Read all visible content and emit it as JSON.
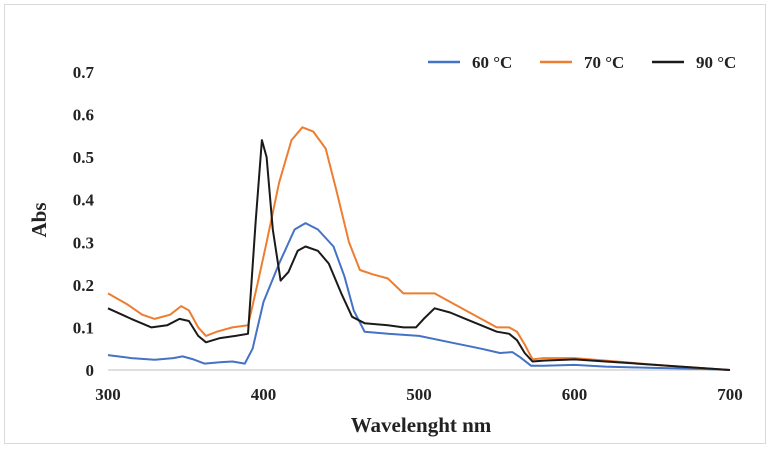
{
  "chart_data": {
    "type": "line",
    "xlabel": "Wavelenght nm",
    "ylabel": "Abs",
    "xlim": [
      300,
      700
    ],
    "ylim": [
      0,
      0.7
    ],
    "x_ticks": [
      "300",
      "400",
      "500",
      "600",
      "700"
    ],
    "y_ticks": [
      "0",
      "0.1",
      "0.2",
      "0.3",
      "0.4",
      "0.5",
      "0.6",
      "0.7"
    ],
    "grid": false,
    "legend": "top-right",
    "series": [
      {
        "name": "60 °C",
        "color": "#4472c4",
        "points": [
          [
            300,
            0.035
          ],
          [
            315,
            0.028
          ],
          [
            330,
            0.024
          ],
          [
            342,
            0.028
          ],
          [
            348,
            0.032
          ],
          [
            355,
            0.025
          ],
          [
            362,
            0.015
          ],
          [
            372,
            0.018
          ],
          [
            380,
            0.02
          ],
          [
            388,
            0.015
          ],
          [
            393,
            0.05
          ],
          [
            400,
            0.16
          ],
          [
            410,
            0.25
          ],
          [
            420,
            0.33
          ],
          [
            427,
            0.345
          ],
          [
            435,
            0.33
          ],
          [
            445,
            0.29
          ],
          [
            452,
            0.22
          ],
          [
            458,
            0.14
          ],
          [
            465,
            0.09
          ],
          [
            480,
            0.085
          ],
          [
            500,
            0.08
          ],
          [
            520,
            0.065
          ],
          [
            540,
            0.05
          ],
          [
            552,
            0.04
          ],
          [
            560,
            0.042
          ],
          [
            565,
            0.03
          ],
          [
            572,
            0.01
          ],
          [
            580,
            0.01
          ],
          [
            600,
            0.012
          ],
          [
            620,
            0.008
          ],
          [
            650,
            0.005
          ],
          [
            680,
            0.003
          ],
          [
            700,
            0.0
          ]
        ]
      },
      {
        "name": "70 °C",
        "color": "#ed7d31",
        "points": [
          [
            300,
            0.18
          ],
          [
            312,
            0.155
          ],
          [
            322,
            0.13
          ],
          [
            330,
            0.12
          ],
          [
            340,
            0.13
          ],
          [
            347,
            0.15
          ],
          [
            352,
            0.14
          ],
          [
            358,
            0.1
          ],
          [
            363,
            0.08
          ],
          [
            370,
            0.09
          ],
          [
            380,
            0.1
          ],
          [
            390,
            0.105
          ],
          [
            396,
            0.2
          ],
          [
            402,
            0.3
          ],
          [
            410,
            0.44
          ],
          [
            418,
            0.54
          ],
          [
            425,
            0.57
          ],
          [
            432,
            0.56
          ],
          [
            440,
            0.52
          ],
          [
            447,
            0.42
          ],
          [
            455,
            0.3
          ],
          [
            462,
            0.235
          ],
          [
            470,
            0.225
          ],
          [
            480,
            0.215
          ],
          [
            490,
            0.18
          ],
          [
            500,
            0.18
          ],
          [
            510,
            0.18
          ],
          [
            520,
            0.16
          ],
          [
            530,
            0.14
          ],
          [
            540,
            0.12
          ],
          [
            550,
            0.1
          ],
          [
            558,
            0.1
          ],
          [
            563,
            0.09
          ],
          [
            568,
            0.06
          ],
          [
            573,
            0.025
          ],
          [
            580,
            0.028
          ],
          [
            600,
            0.028
          ],
          [
            620,
            0.022
          ],
          [
            640,
            0.016
          ],
          [
            660,
            0.01
          ],
          [
            680,
            0.005
          ],
          [
            700,
            0.0
          ]
        ]
      },
      {
        "name": "90 °C",
        "color": "#1a1a1a",
        "points": [
          [
            300,
            0.145
          ],
          [
            315,
            0.12
          ],
          [
            328,
            0.1
          ],
          [
            338,
            0.105
          ],
          [
            346,
            0.12
          ],
          [
            352,
            0.115
          ],
          [
            358,
            0.08
          ],
          [
            363,
            0.065
          ],
          [
            372,
            0.075
          ],
          [
            382,
            0.08
          ],
          [
            390,
            0.085
          ],
          [
            395,
            0.35
          ],
          [
            399,
            0.54
          ],
          [
            402,
            0.5
          ],
          [
            406,
            0.33
          ],
          [
            411,
            0.21
          ],
          [
            416,
            0.23
          ],
          [
            422,
            0.28
          ],
          [
            427,
            0.29
          ],
          [
            435,
            0.28
          ],
          [
            442,
            0.25
          ],
          [
            450,
            0.18
          ],
          [
            457,
            0.125
          ],
          [
            465,
            0.11
          ],
          [
            480,
            0.105
          ],
          [
            490,
            0.1
          ],
          [
            498,
            0.1
          ],
          [
            503,
            0.12
          ],
          [
            510,
            0.145
          ],
          [
            520,
            0.135
          ],
          [
            530,
            0.12
          ],
          [
            540,
            0.105
          ],
          [
            550,
            0.09
          ],
          [
            558,
            0.085
          ],
          [
            563,
            0.07
          ],
          [
            568,
            0.04
          ],
          [
            573,
            0.02
          ],
          [
            580,
            0.022
          ],
          [
            600,
            0.025
          ],
          [
            620,
            0.02
          ],
          [
            640,
            0.015
          ],
          [
            660,
            0.01
          ],
          [
            680,
            0.005
          ],
          [
            700,
            0.0
          ]
        ]
      }
    ]
  }
}
